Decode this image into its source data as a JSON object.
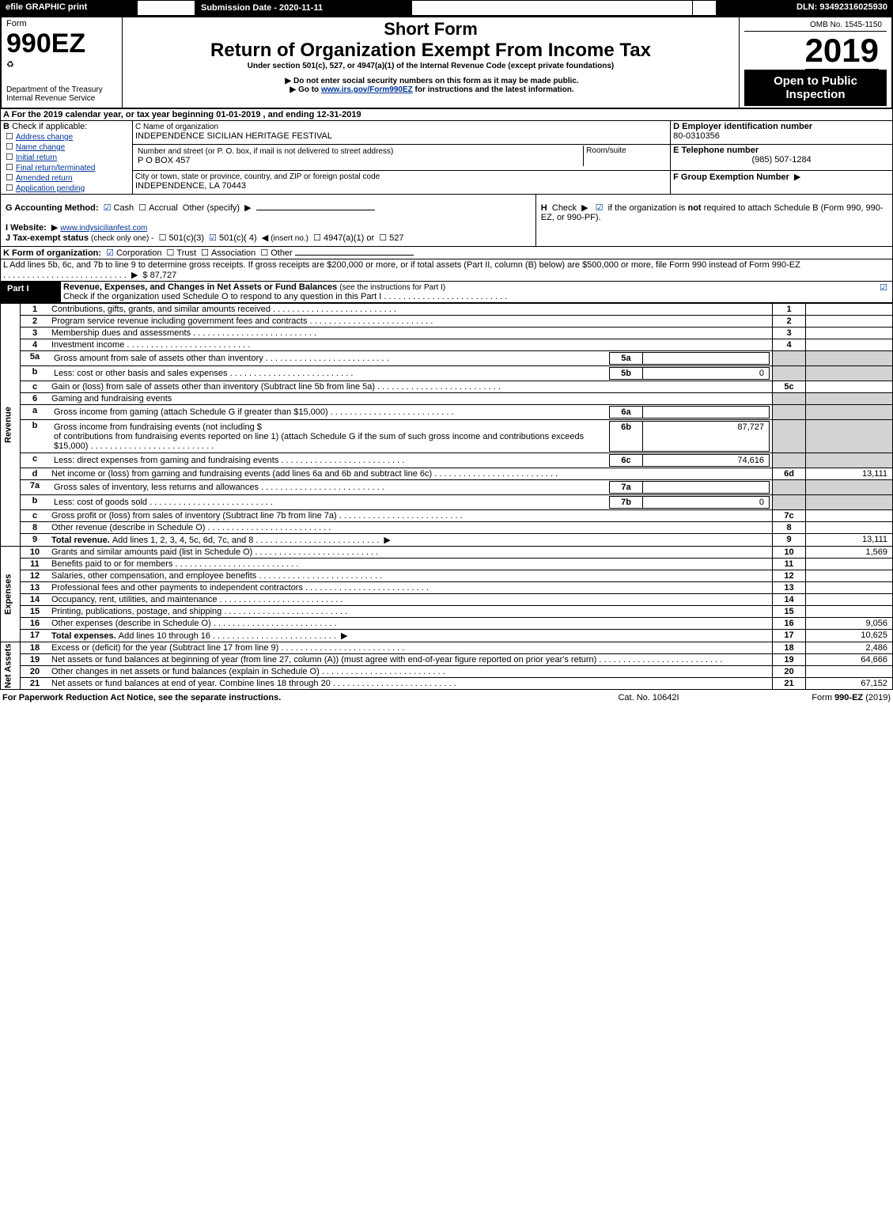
{
  "topbar": {
    "efile": "efile GRAPHIC print",
    "subdate_label": "Submission Date - 2020-11-11",
    "dln": "DLN: 93492316025930"
  },
  "header": {
    "form": "Form",
    "formnum": "990EZ",
    "dept": "Department of the Treasury",
    "irs": "Internal Revenue Service",
    "short": "Short Form",
    "title": "Return of Organization Exempt From Income Tax",
    "sub": "Under section 501(c), 527, or 4947(a)(1) of the Internal Revenue Code (except private foundations)",
    "warn": "Do not enter social security numbers on this form as it may be made public.",
    "goto_pre": "Go to ",
    "goto_link": "www.irs.gov/Form990EZ",
    "goto_post": " for instructions and the latest information.",
    "omb": "OMB No. 1545-1150",
    "year": "2019",
    "open": "Open to Public Inspection"
  },
  "A": {
    "text": "For the 2019 calendar year, or tax year beginning 01-01-2019 , and ending 12-31-2019"
  },
  "B": {
    "hdr": "Check if applicable:",
    "opts": [
      "Address change",
      "Name change",
      "Initial return",
      "Final return/terminated",
      "Amended return",
      "Application pending"
    ]
  },
  "C": {
    "label": "C Name of organization",
    "name": "INDEPENDENCE SICILIAN HERITAGE FESTIVAL",
    "addr_label": "Number and street (or P. O. box, if mail is not delivered to street address)",
    "addr": "P O BOX 457",
    "room": "Room/suite",
    "city_label": "City or town, state or province, country, and ZIP or foreign postal code",
    "city": "INDEPENDENCE, LA  70443"
  },
  "D": {
    "label": "D Employer identification number",
    "val": "80-0310356"
  },
  "E": {
    "label": "E Telephone number",
    "val": "(985) 507-1284"
  },
  "F": {
    "label": "F Group Exemption Number"
  },
  "G": {
    "label": "G Accounting Method:",
    "cash": "Cash",
    "accrual": "Accrual",
    "other": "Other (specify)"
  },
  "H": {
    "text1": "Check",
    "text2": "if the organization is ",
    "not": "not",
    "text3": " required to attach Schedule B (Form 990, 990-EZ, or 990-PF)."
  },
  "I": {
    "label": "I Website:",
    "val": "www.indysicilianfest.com"
  },
  "J": {
    "label": "J Tax-exempt status",
    "small": "(check only one) -",
    "o1": "501(c)(3)",
    "o2": "501(c)( 4)",
    "ins": "(insert no.)",
    "o3": "4947(a)(1) or",
    "o4": "527"
  },
  "K": {
    "label": "K Form of organization:",
    "c": "Corporation",
    "t": "Trust",
    "a": "Association",
    "o": "Other"
  },
  "L": {
    "text": "L Add lines 5b, 6c, and 7b to line 9 to determine gross receipts. If gross receipts are $200,000 or more, or if total assets (Part II, column (B) below) are $500,000 or more, file Form 990 instead of Form 990-EZ",
    "amt": "$ 87,727"
  },
  "part1": {
    "title": "Revenue, Expenses, and Changes in Net Assets or Fund Balances",
    "inst": "(see the instructions for Part I)",
    "check_text": "Check if the organization used Schedule O to respond to any question in this Part I",
    "revenue_label": "Revenue",
    "expenses_label": "Expenses",
    "netassets_label": "Net Assets",
    "rows": [
      {
        "n": "1",
        "t": "Contributions, gifts, grants, and similar amounts received",
        "r": "1",
        "v": ""
      },
      {
        "n": "2",
        "t": "Program service revenue including government fees and contracts",
        "r": "2",
        "v": ""
      },
      {
        "n": "3",
        "t": "Membership dues and assessments",
        "r": "3",
        "v": ""
      },
      {
        "n": "4",
        "t": "Investment income",
        "r": "4",
        "v": ""
      },
      {
        "n": "5a",
        "t": "Gross amount from sale of assets other than inventory",
        "sub": "5a",
        "sv": ""
      },
      {
        "n": "b",
        "t": "Less: cost or other basis and sales expenses",
        "sub": "5b",
        "sv": "0"
      },
      {
        "n": "c",
        "t": "Gain or (loss) from sale of assets other than inventory (Subtract line 5b from line 5a)",
        "r": "5c",
        "v": ""
      },
      {
        "n": "6",
        "t": "Gaming and fundraising events"
      },
      {
        "n": "a",
        "t": "Gross income from gaming (attach Schedule G if greater than $15,000)",
        "sub": "6a",
        "sv": ""
      },
      {
        "n": "b",
        "t": "Gross income from fundraising events (not including $",
        "t2": "of contributions from fundraising events reported on line 1) (attach Schedule G if the sum of such gross income and contributions exceeds $15,000)",
        "sub": "6b",
        "sv": "87,727"
      },
      {
        "n": "c",
        "t": "Less: direct expenses from gaming and fundraising events",
        "sub": "6c",
        "sv": "74,616"
      },
      {
        "n": "d",
        "t": "Net income or (loss) from gaming and fundraising events (add lines 6a and 6b and subtract line 6c)",
        "r": "6d",
        "v": "13,111"
      },
      {
        "n": "7a",
        "t": "Gross sales of inventory, less returns and allowances",
        "sub": "7a",
        "sv": ""
      },
      {
        "n": "b",
        "t": "Less: cost of goods sold",
        "sub": "7b",
        "sv": "0"
      },
      {
        "n": "c",
        "t": "Gross profit or (loss) from sales of inventory (Subtract line 7b from line 7a)",
        "r": "7c",
        "v": ""
      },
      {
        "n": "8",
        "t": "Other revenue (describe in Schedule O)",
        "r": "8",
        "v": ""
      },
      {
        "n": "9",
        "t": "Total revenue. ",
        "t2": "Add lines 1, 2, 3, 4, 5c, 6d, 7c, and 8",
        "r": "9",
        "v": "13,111",
        "bold": true,
        "arrow": true
      },
      {
        "n": "10",
        "t": "Grants and similar amounts paid (list in Schedule O)",
        "r": "10",
        "v": "1,569"
      },
      {
        "n": "11",
        "t": "Benefits paid to or for members",
        "r": "11",
        "v": ""
      },
      {
        "n": "12",
        "t": "Salaries, other compensation, and employee benefits",
        "r": "12",
        "v": ""
      },
      {
        "n": "13",
        "t": "Professional fees and other payments to independent contractors",
        "r": "13",
        "v": ""
      },
      {
        "n": "14",
        "t": "Occupancy, rent, utilities, and maintenance",
        "r": "14",
        "v": ""
      },
      {
        "n": "15",
        "t": "Printing, publications, postage, and shipping",
        "r": "15",
        "v": ""
      },
      {
        "n": "16",
        "t": "Other expenses (describe in Schedule O)",
        "r": "16",
        "v": "9,056"
      },
      {
        "n": "17",
        "t": "Total expenses. ",
        "t2": "Add lines 10 through 16",
        "r": "17",
        "v": "10,625",
        "bold": true,
        "arrow": true
      },
      {
        "n": "18",
        "t": "Excess or (deficit) for the year (Subtract line 17 from line 9)",
        "r": "18",
        "v": "2,486"
      },
      {
        "n": "19",
        "t": "Net assets or fund balances at beginning of year (from line 27, column (A)) (must agree with end-of-year figure reported on prior year's return)",
        "r": "19",
        "v": "64,666"
      },
      {
        "n": "20",
        "t": "Other changes in net assets or fund balances (explain in Schedule O)",
        "r": "20",
        "v": ""
      },
      {
        "n": "21",
        "t": "Net assets or fund balances at end of year. Combine lines 18 through 20",
        "r": "21",
        "v": "67,152"
      }
    ]
  },
  "footer": {
    "left": "For Paperwork Reduction Act Notice, see the separate instructions.",
    "mid": "Cat. No. 10642I",
    "right_pre": "Form ",
    "right_form": "990-EZ",
    "right_post": " (2019)"
  }
}
